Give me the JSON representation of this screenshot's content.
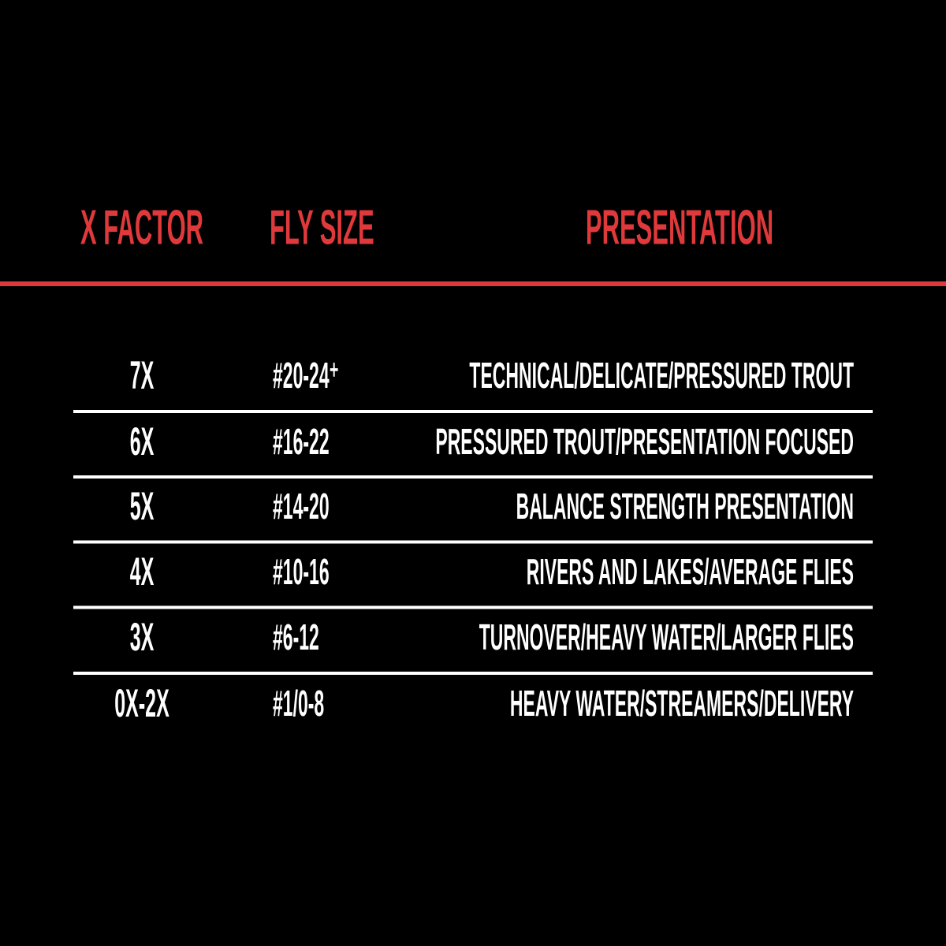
{
  "table": {
    "headers": [
      "X FACTOR",
      "FLY SIZE",
      "PRESENTATION"
    ],
    "rows": [
      [
        "7X",
        "#20-24⁺",
        "TECHNICAL/DELICATE/PRESSURED TROUT"
      ],
      [
        "6X",
        "#16-22",
        "PRESSURED TROUT/PRESENTATION FOCUSED"
      ],
      [
        "5X",
        "#14-20",
        "BALANCE STRENGTH PRESENTATION"
      ],
      [
        "4X",
        "#10-16",
        "RIVERS AND LAKES/AVERAGE FLIES"
      ],
      [
        "3X",
        "#6-12",
        "TURNOVER/HEAVY WATER/LARGER FLIES"
      ],
      [
        "0X-2X",
        "#1/0-8",
        "HEAVY WATER/STREAMERS/DELIVERY"
      ]
    ]
  }
}
